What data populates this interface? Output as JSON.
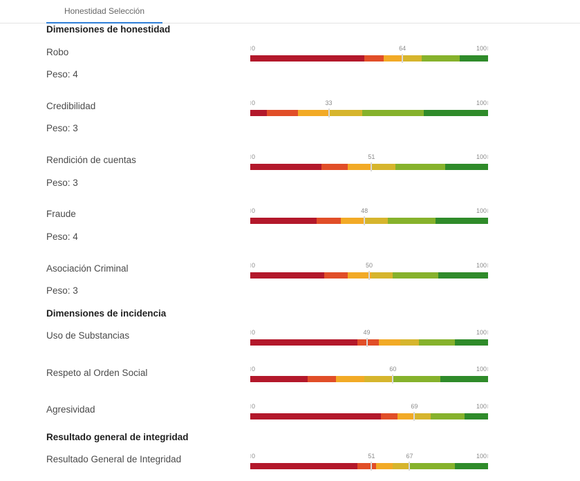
{
  "tab": {
    "label": "Honestidad Selección"
  },
  "colors": {
    "dark_red": "#b3182b",
    "red_orange": "#e14e28",
    "orange": "#f2aa26",
    "yellow": "#d6b52d",
    "light_green": "#86b22c",
    "green": "#2f8b2a",
    "tab_accent": "#2f7fd8"
  },
  "scale": {
    "min": "0",
    "max": "100"
  },
  "sections": {
    "honestidad": "Dimensiones de honestidad",
    "incidencia": "Dimensiones de incidencia",
    "integridad": "Resultado general de integridad"
  },
  "rows": [
    {
      "label": "Robo",
      "peso": "Peso: 4",
      "value": 64,
      "bands": [
        {
          "c": "dark_red",
          "w": 48
        },
        {
          "c": "red_orange",
          "w": 8
        },
        {
          "c": "orange",
          "w": 8
        },
        {
          "c": "yellow",
          "w": 8
        },
        {
          "c": "light_green",
          "w": 16
        },
        {
          "c": "green",
          "w": 12
        }
      ]
    },
    {
      "label": "Credibilidad",
      "peso": "Peso: 3",
      "value": 33,
      "bands": [
        {
          "c": "dark_red",
          "w": 7
        },
        {
          "c": "red_orange",
          "w": 13
        },
        {
          "c": "orange",
          "w": 13
        },
        {
          "c": "yellow",
          "w": 14
        },
        {
          "c": "light_green",
          "w": 26
        },
        {
          "c": "green",
          "w": 27
        }
      ]
    },
    {
      "label": "Rendición de cuentas",
      "peso": "Peso: 3",
      "value": 51,
      "bands": [
        {
          "c": "dark_red",
          "w": 30
        },
        {
          "c": "red_orange",
          "w": 11
        },
        {
          "c": "orange",
          "w": 10
        },
        {
          "c": "yellow",
          "w": 10
        },
        {
          "c": "light_green",
          "w": 21
        },
        {
          "c": "green",
          "w": 18
        }
      ]
    },
    {
      "label": "Fraude",
      "peso": "Peso: 4",
      "value": 48,
      "bands": [
        {
          "c": "dark_red",
          "w": 28
        },
        {
          "c": "red_orange",
          "w": 10
        },
        {
          "c": "orange",
          "w": 10
        },
        {
          "c": "yellow",
          "w": 10
        },
        {
          "c": "light_green",
          "w": 20
        },
        {
          "c": "green",
          "w": 22
        }
      ]
    },
    {
      "label": "Asociación Criminal",
      "peso": "Peso: 3",
      "value": 50,
      "bands": [
        {
          "c": "dark_red",
          "w": 31
        },
        {
          "c": "red_orange",
          "w": 10
        },
        {
          "c": "orange",
          "w": 10
        },
        {
          "c": "yellow",
          "w": 9
        },
        {
          "c": "light_green",
          "w": 19
        },
        {
          "c": "green",
          "w": 21
        }
      ]
    },
    {
      "label": "Uso de Substancias",
      "value": 49,
      "bands": [
        {
          "c": "dark_red",
          "w": 45
        },
        {
          "c": "red_orange",
          "w": 9
        },
        {
          "c": "orange",
          "w": 9
        },
        {
          "c": "yellow",
          "w": 8
        },
        {
          "c": "light_green",
          "w": 15
        },
        {
          "c": "green",
          "w": 14
        }
      ]
    },
    {
      "label": "Respeto al Orden Social",
      "value": 60,
      "bands": [
        {
          "c": "dark_red",
          "w": 24
        },
        {
          "c": "red_orange",
          "w": 12
        },
        {
          "c": "orange",
          "w": 12
        },
        {
          "c": "yellow",
          "w": 12
        },
        {
          "c": "light_green",
          "w": 20
        },
        {
          "c": "green",
          "w": 20
        }
      ]
    },
    {
      "label": "Agresividad",
      "value": 69,
      "bands": [
        {
          "c": "dark_red",
          "w": 55
        },
        {
          "c": "red_orange",
          "w": 7
        },
        {
          "c": "orange",
          "w": 7
        },
        {
          "c": "yellow",
          "w": 7
        },
        {
          "c": "light_green",
          "w": 14
        },
        {
          "c": "green",
          "w": 10
        }
      ]
    },
    {
      "label": "Resultado General de Integridad",
      "value": 67,
      "value2": 51,
      "bands": [
        {
          "c": "dark_red",
          "w": 45
        },
        {
          "c": "red_orange",
          "w": 8
        },
        {
          "c": "orange",
          "w": 7
        },
        {
          "c": "yellow",
          "w": 7
        },
        {
          "c": "light_green",
          "w": 19
        },
        {
          "c": "green",
          "w": 14
        }
      ]
    }
  ]
}
